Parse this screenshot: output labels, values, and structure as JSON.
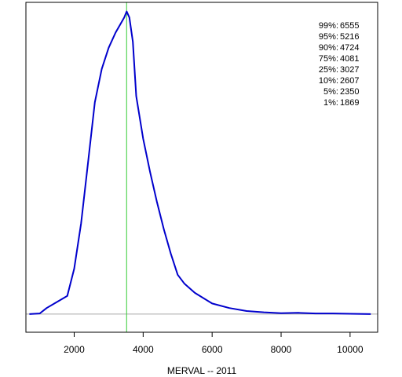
{
  "chart_data": {
    "type": "line",
    "title": "",
    "xlabel": "MERVAL -- 2011",
    "ylabel": "",
    "xlim": [
      600,
      10800
    ],
    "ylim": [
      -0.06,
      1.03
    ],
    "x_ticks": [
      2000,
      4000,
      6000,
      8000,
      10000
    ],
    "x_tick_labels": [
      "2000",
      "4000",
      "6000",
      "8000",
      "10000"
    ],
    "grid": false,
    "colors": {
      "density": "#0000cc",
      "median_line": "#33cc33",
      "baseline": "#aaaaaa",
      "axes": "#000000"
    },
    "median_line_x": 3520,
    "baseline_y": 0,
    "series": [
      {
        "x": [
          700,
          1000,
          1200,
          1500,
          1800,
          2000,
          2200,
          2400,
          2600,
          2800,
          3000,
          3200,
          3350,
          3450,
          3520,
          3600,
          3700,
          3800,
          4000,
          4200,
          4400,
          4600,
          4800,
          5000,
          5200,
          5500,
          6000,
          6500,
          7000,
          7500,
          8000,
          8500,
          9000,
          9500,
          10000,
          10600
        ],
        "values": [
          0.0,
          0.002,
          0.02,
          0.04,
          0.06,
          0.15,
          0.3,
          0.5,
          0.7,
          0.81,
          0.88,
          0.93,
          0.96,
          0.98,
          1.0,
          0.98,
          0.9,
          0.72,
          0.58,
          0.47,
          0.37,
          0.28,
          0.2,
          0.13,
          0.1,
          0.07,
          0.035,
          0.02,
          0.01,
          0.006,
          0.003,
          0.004,
          0.002,
          0.002,
          0.001,
          0.0
        ]
      }
    ],
    "annotations": [
      {
        "label": "99%:",
        "value": "6555"
      },
      {
        "label": "95%:",
        "value": "5216"
      },
      {
        "label": "90%:",
        "value": "4724"
      },
      {
        "label": "75%:",
        "value": "4081"
      },
      {
        "label": "25%:",
        "value": "3027"
      },
      {
        "label": "10%:",
        "value": "2607"
      },
      {
        "label": "5%:",
        "value": "2350"
      },
      {
        "label": "1%:",
        "value": "1869"
      }
    ]
  }
}
